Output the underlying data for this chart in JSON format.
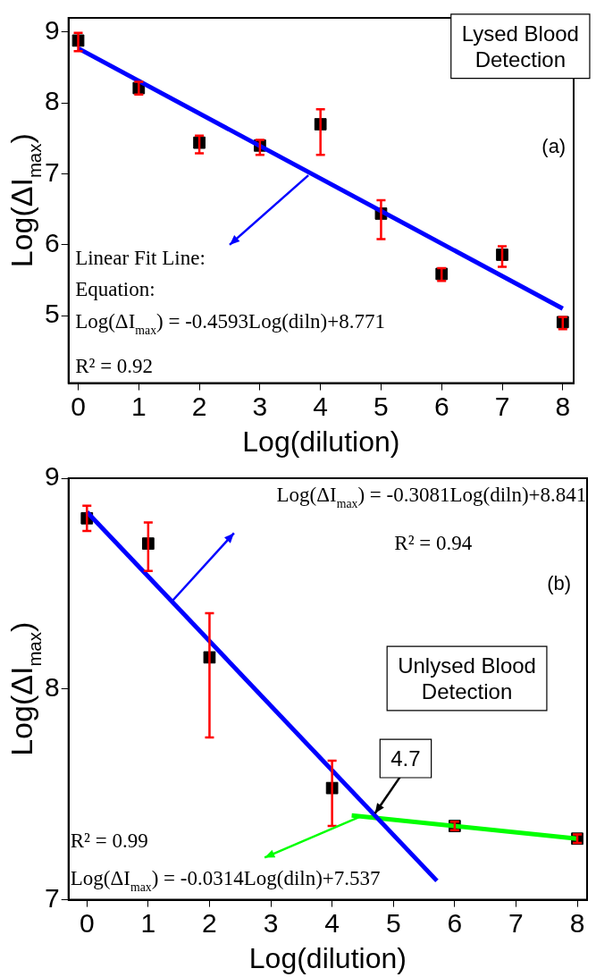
{
  "chart_data": [
    {
      "type": "scatter",
      "xlabel": "Log(dilution)",
      "ylabel": "Log(ΔI$_{max}$)",
      "xlim": [
        -0.16,
        8.18
      ],
      "ylim": [
        4.05,
        9.2
      ],
      "xticks": [
        0,
        1,
        2,
        3,
        4,
        5,
        6,
        7,
        8
      ],
      "yticks": [
        5,
        6,
        7,
        8,
        9
      ],
      "grid": false,
      "legend": false,
      "marker": "square",
      "series": [
        {
          "color": "#000000",
          "x": [
            0,
            1,
            2,
            3,
            4,
            5,
            6,
            7,
            8
          ],
          "values": [
            8.88,
            8.21,
            7.44,
            7.4,
            7.7,
            6.44,
            5.59,
            5.86,
            4.91
          ],
          "errors": [
            [
              8.73,
              8.99
            ],
            [
              8.12,
              8.3
            ],
            [
              7.29,
              7.54
            ],
            [
              7.27,
              7.48
            ],
            [
              7.27,
              7.91
            ],
            [
              6.08,
              6.63
            ],
            [
              5.49,
              5.67
            ],
            [
              5.69,
              5.98
            ],
            [
              4.81,
              4.98
            ]
          ]
        },
        {
          "type": "line",
          "marker": "none",
          "color": "#0000ff",
          "x": [
            0,
            8
          ],
          "values": [
            8.77,
            5.1
          ]
        }
      ],
      "annotations": [
        "Lysed Blood Detection",
        "(a)",
        "Linear Fit Line:",
        "Equation:",
        "Log(ΔI$_{max}$) = -0.4593Log(diln)+8.771",
        "R² = 0.92"
      ]
    },
    {
      "type": "scatter",
      "xlabel": "Log(dilution)",
      "ylabel": "Log(ΔI$_{max}$)",
      "xlim": [
        -0.3,
        8.16
      ],
      "ylim": [
        7,
        9
      ],
      "xticks": [
        0,
        1,
        2,
        3,
        4,
        5,
        6,
        7,
        8
      ],
      "yticks": [
        7,
        8,
        9
      ],
      "grid": false,
      "legend": false,
      "series": [
        {
          "marker": "square",
          "color": "#000000",
          "x": [
            0,
            1,
            2,
            4,
            6,
            8
          ],
          "values": [
            8.81,
            8.69,
            8.15,
            7.53,
            7.35,
            7.29
          ],
          "errors": [
            [
              8.75,
              8.87
            ],
            [
              8.56,
              8.79
            ],
            [
              7.77,
              8.36
            ],
            [
              7.35,
              7.66
            ],
            [
              7.33,
              7.37
            ],
            [
              7.27,
              7.31
            ]
          ]
        },
        {
          "type": "line",
          "color": "#0000ff",
          "x": [
            0,
            5.71
          ],
          "values": [
            8.84,
            7.09
          ]
        },
        {
          "type": "line",
          "color": "#00ff00",
          "x": [
            4.32,
            8
          ],
          "values": [
            7.4,
            7.29
          ]
        }
      ],
      "annotations": [
        "Log(ΔI$_{max}$) = -0.3081Log(diln)+8.841",
        "R² = 0.94",
        "(b)",
        "Unlysed Blood Detection",
        {
          "text": "4.7",
          "x": 4.7,
          "y": 7.41
        },
        "R² = 0.99",
        "Log(ΔI$_{max}$) = -0.0314Log(diln)+7.537"
      ]
    }
  ]
}
